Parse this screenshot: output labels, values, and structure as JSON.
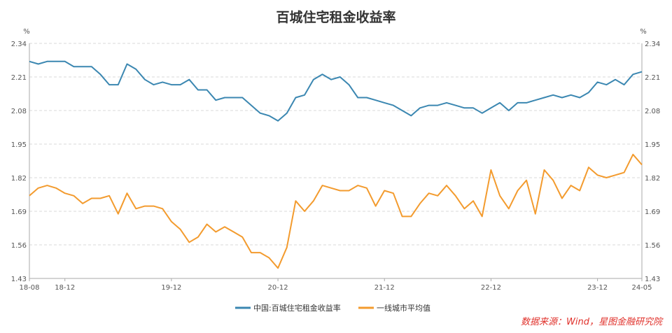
{
  "chart_data": {
    "type": "line",
    "title": "百城住宅租金收益率",
    "ylabel_left": "%",
    "ylabel_right": "%",
    "ylim": [
      1.43,
      2.34
    ],
    "yticks": [
      "2.34",
      "2.21",
      "2.08",
      "1.95",
      "1.82",
      "1.69",
      "1.56",
      "1.43"
    ],
    "ytick_values": [
      2.34,
      2.21,
      2.08,
      1.95,
      1.82,
      1.69,
      1.56,
      1.43
    ],
    "xticks": [
      {
        "label": "18-08",
        "index": 0
      },
      {
        "label": "18-12",
        "index": 4
      },
      {
        "label": "19-12",
        "index": 16
      },
      {
        "label": "20-12",
        "index": 28
      },
      {
        "label": "21-12",
        "index": 40
      },
      {
        "label": "22-12",
        "index": 52
      },
      {
        "label": "23-12",
        "index": 64
      },
      {
        "label": "24-05",
        "index": 69
      }
    ],
    "grid": true,
    "legend_position": "bottom-center",
    "series": [
      {
        "name": "中国:百城住宅租金收益率",
        "color": "#3b87b1",
        "values": [
          2.27,
          2.26,
          2.27,
          2.27,
          2.27,
          2.25,
          2.25,
          2.25,
          2.22,
          2.18,
          2.18,
          2.26,
          2.24,
          2.2,
          2.18,
          2.19,
          2.18,
          2.18,
          2.2,
          2.16,
          2.16,
          2.12,
          2.13,
          2.13,
          2.13,
          2.1,
          2.07,
          2.06,
          2.04,
          2.07,
          2.13,
          2.14,
          2.2,
          2.22,
          2.2,
          2.21,
          2.18,
          2.13,
          2.13,
          2.12,
          2.11,
          2.1,
          2.08,
          2.06,
          2.09,
          2.1,
          2.1,
          2.11,
          2.1,
          2.09,
          2.09,
          2.07,
          2.09,
          2.11,
          2.08,
          2.11,
          2.11,
          2.12,
          2.13,
          2.14,
          2.13,
          2.14,
          2.13,
          2.15,
          2.19,
          2.18,
          2.2,
          2.18,
          2.22,
          2.23
        ]
      },
      {
        "name": "一线城市平均值",
        "color": "#f39b2e",
        "values": [
          1.75,
          1.78,
          1.79,
          1.78,
          1.76,
          1.75,
          1.72,
          1.74,
          1.74,
          1.75,
          1.68,
          1.76,
          1.7,
          1.71,
          1.71,
          1.7,
          1.65,
          1.62,
          1.57,
          1.59,
          1.64,
          1.61,
          1.63,
          1.61,
          1.59,
          1.53,
          1.53,
          1.51,
          1.47,
          1.55,
          1.73,
          1.69,
          1.73,
          1.79,
          1.78,
          1.77,
          1.77,
          1.79,
          1.78,
          1.71,
          1.77,
          1.76,
          1.67,
          1.67,
          1.72,
          1.76,
          1.75,
          1.79,
          1.75,
          1.7,
          1.73,
          1.67,
          1.85,
          1.75,
          1.7,
          1.77,
          1.81,
          1.68,
          1.85,
          1.81,
          1.74,
          1.79,
          1.77,
          1.86,
          1.83,
          1.82,
          1.83,
          1.84,
          1.91,
          1.87
        ]
      }
    ]
  },
  "source_note": "数据来源：Wind，星图金融研究院"
}
